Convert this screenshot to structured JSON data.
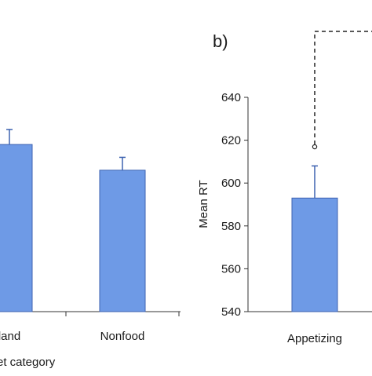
{
  "colors": {
    "bar_fill": "#6e9ae6",
    "bar_stroke": "#3d62b0",
    "axis": "#333333",
    "error": "#3d62b0"
  },
  "chart_data": [
    {
      "type": "bar",
      "panel": "",
      "categories": [
        "land",
        "Nonfood"
      ],
      "values": [
        618,
        606
      ],
      "errors": [
        7,
        6
      ],
      "xlabel": "et category",
      "ylabel": "",
      "ylim": [
        540,
        640
      ],
      "grid": false,
      "legend": "none"
    },
    {
      "type": "bar",
      "panel": "b)",
      "categories": [
        "Appetizing"
      ],
      "values": [
        593
      ],
      "errors": [
        15
      ],
      "xlabel": "",
      "ylabel": "Mean RT",
      "ylim": [
        540,
        640
      ],
      "yticks": [
        540,
        560,
        580,
        600,
        620,
        640
      ],
      "grid": false,
      "legend": "none",
      "annotations": [
        "significance bracket (dashed) from Appetizing bar"
      ]
    }
  ]
}
